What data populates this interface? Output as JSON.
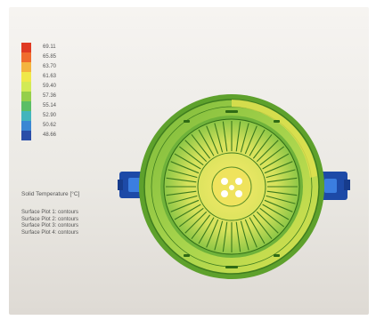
{
  "legend": {
    "values": [
      "69.11",
      "65.85",
      "63.70",
      "61.63",
      "59.40",
      "57.36",
      "55.14",
      "52.90",
      "50.62",
      "48.66"
    ],
    "colors": [
      "#e03a23",
      "#f06c2d",
      "#f4b43f",
      "#efe84a",
      "#d2ea56",
      "#95cf4b",
      "#5bbe66",
      "#43b5bc",
      "#3a87d3",
      "#2a4ea8"
    ],
    "title": "Solid Temperature [°C]"
  },
  "plots": [
    "Surface Plot 1: contours",
    "Surface Plot 2: contours",
    "Surface Plot 3: contours",
    "Surface Plot 4: contours"
  ]
}
